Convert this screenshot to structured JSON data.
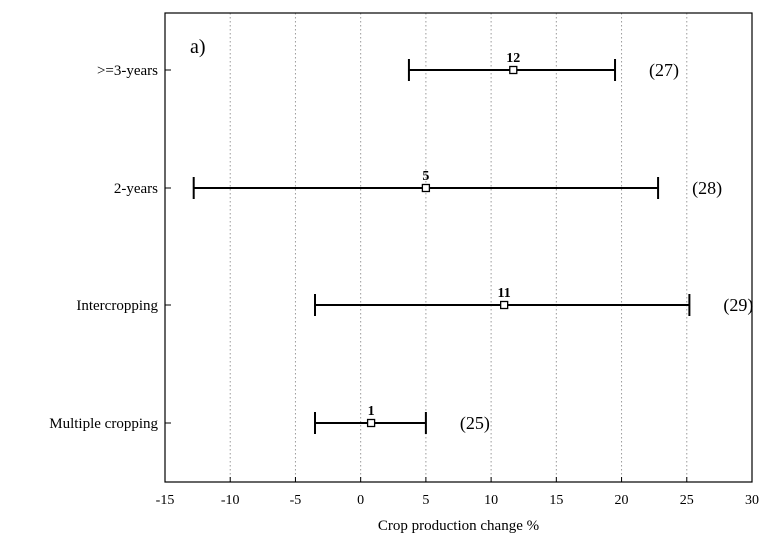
{
  "chart_data": {
    "type": "forest",
    "panel_label": "a)",
    "xlabel": "Crop production change %",
    "xlim": [
      -15,
      30
    ],
    "xticks": [
      "-15",
      "-10",
      "-5",
      "0",
      "5",
      "10",
      "15",
      "20",
      "25",
      "30"
    ],
    "grid": "vertical-dotted",
    "series": [
      {
        "category": ">=3-years",
        "mean": 11.7,
        "lower": 3.7,
        "upper": 19.5,
        "annotation": "12",
        "n_label": "(27)"
      },
      {
        "category": "2-years",
        "mean": 5.0,
        "lower": -12.8,
        "upper": 22.8,
        "annotation": "5",
        "n_label": "(28)"
      },
      {
        "category": "Intercropping",
        "mean": 11.0,
        "lower": -3.5,
        "upper": 25.2,
        "annotation": "11",
        "n_label": "(29)"
      },
      {
        "category": "Multiple cropping",
        "mean": 0.8,
        "lower": -3.5,
        "upper": 5.0,
        "annotation": "1",
        "n_label": "(25)"
      }
    ]
  }
}
